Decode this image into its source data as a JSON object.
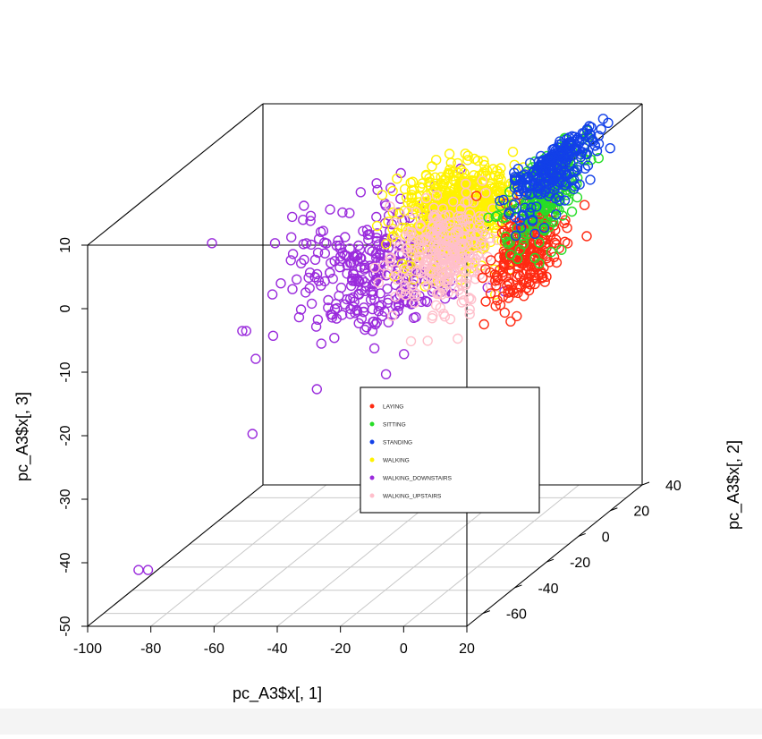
{
  "chart_data": {
    "type": "scatter",
    "subtype": "scatterplot3d",
    "xlabel": "pc_A3$x[, 1]",
    "ylabel": "pc_A3$x[, 2]",
    "zlabel": "pc_A3$x[, 3]",
    "x_ticks": [
      "-100",
      "-80",
      "-60",
      "-40",
      "-20",
      "0",
      "20"
    ],
    "y_ticks": [
      "-60",
      "-40",
      "-20",
      "0",
      "20",
      "40"
    ],
    "z_ticks": [
      "-50",
      "-40",
      "-30",
      "-20",
      "-10",
      "0",
      "10"
    ],
    "xlim": [
      -100,
      20
    ],
    "ylim": [
      -70,
      40
    ],
    "zlim": [
      -50,
      10
    ],
    "grid": "floor",
    "legend_position": "center",
    "marker": "open circle",
    "series": [
      {
        "name": "LAYING",
        "color": "#ff2a12",
        "approx_count": 260
      },
      {
        "name": "SITTING",
        "color": "#27dd27",
        "approx_count": 230
      },
      {
        "name": "STANDING",
        "color": "#1240e8",
        "approx_count": 260
      },
      {
        "name": "WALKING",
        "color": "#fff200",
        "approx_count": 700
      },
      {
        "name": "WALKING_DOWNSTAIRS",
        "color": "#9a2bdc",
        "approx_count": 330
      },
      {
        "name": "WALKING_UPSTAIRS",
        "color": "#ffbfcb",
        "approx_count": 300
      }
    ]
  }
}
